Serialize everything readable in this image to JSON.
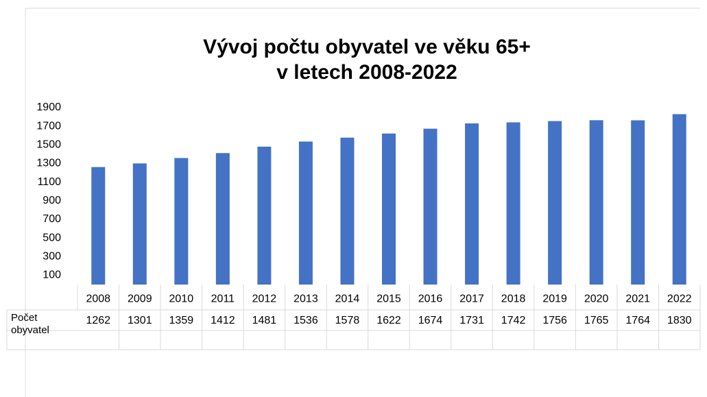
{
  "chart_data": {
    "type": "bar",
    "title": [
      "Vývoj počtu obyvatel ve věku 65+",
      "v letech 2008-2022"
    ],
    "categories": [
      "2008",
      "2009",
      "2010",
      "2011",
      "2012",
      "2013",
      "2014",
      "2015",
      "2016",
      "2017",
      "2018",
      "2019",
      "2020",
      "2021",
      "2022"
    ],
    "series": [
      {
        "name": "Počet obyvatel",
        "color": "#4472c4",
        "values": [
          1262,
          1301,
          1359,
          1412,
          1481,
          1536,
          1578,
          1622,
          1674,
          1731,
          1742,
          1756,
          1765,
          1764,
          1830
        ]
      }
    ],
    "ylim": [
      0,
      1900
    ],
    "yticks": [
      100,
      300,
      500,
      700,
      900,
      1100,
      1300,
      1500,
      1700,
      1900
    ],
    "grid": false,
    "data_table": true
  }
}
